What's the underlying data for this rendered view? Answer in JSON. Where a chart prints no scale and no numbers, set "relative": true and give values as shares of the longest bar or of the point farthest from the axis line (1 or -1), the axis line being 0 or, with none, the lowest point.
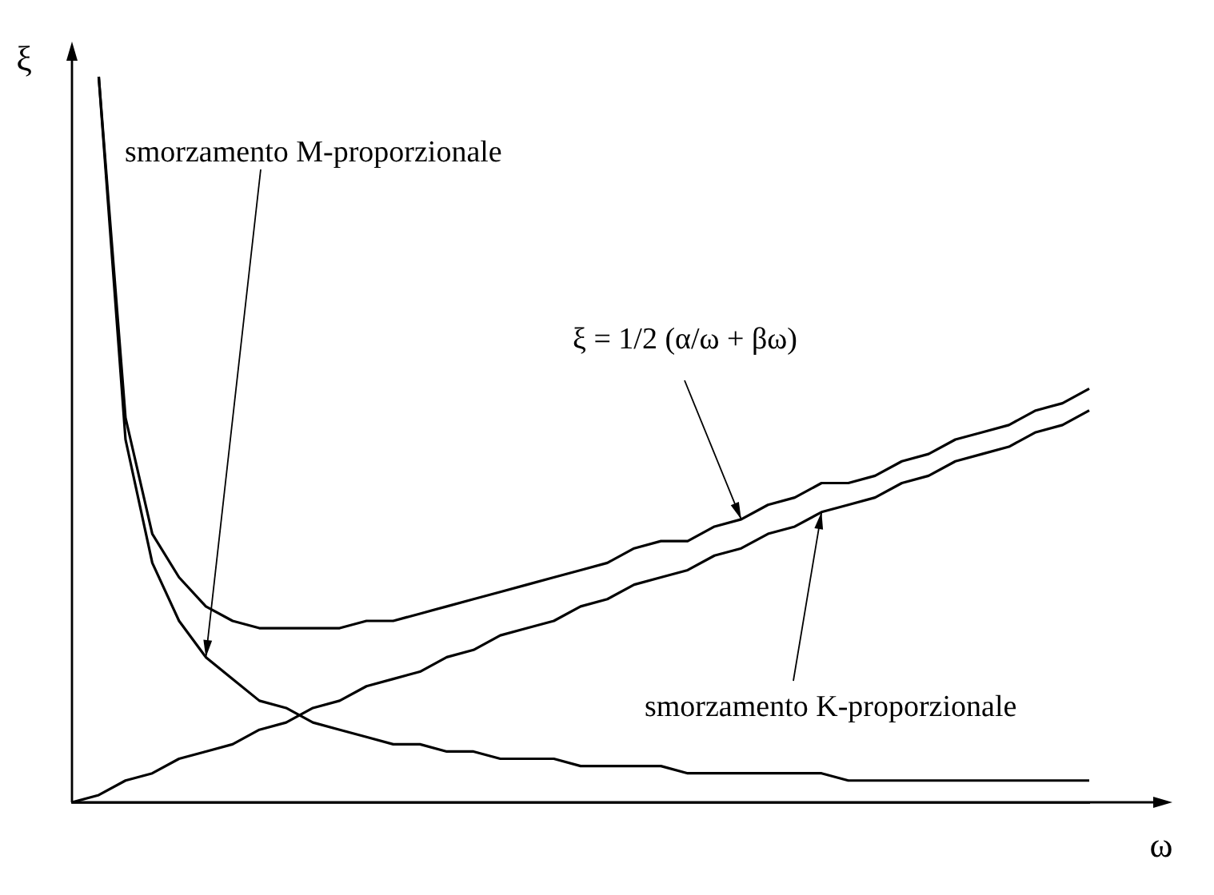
{
  "chart_data": {
    "type": "line",
    "relative": true,
    "xlabel": "ω",
    "ylabel": "ξ",
    "legend": false,
    "grid": false,
    "marker": "none",
    "line_style": "solid",
    "categories": [
      null,
      null,
      null,
      null,
      null,
      null,
      null,
      null,
      null,
      null,
      null,
      null,
      null,
      null,
      null,
      null,
      null,
      null,
      null,
      null,
      null,
      null,
      null,
      null,
      null,
      null,
      null,
      null,
      null,
      null,
      null,
      null,
      null,
      null,
      null,
      null,
      null,
      null,
      null
    ],
    "series": [
      {
        "color": "#000000",
        "values": [
          null,
          1,
          0.5,
          0.33,
          0.25,
          0.2,
          0.17,
          0.14,
          0.13,
          0.11,
          0.1,
          0.09,
          0.08,
          0.08,
          0.07,
          0.07,
          0.06,
          0.06,
          0.06,
          0.05,
          0.05,
          0.05,
          0.05,
          0.04,
          0.04,
          0.04,
          0.04,
          0.04,
          0.04,
          0.03,
          0.03,
          0.03,
          0.03,
          0.03,
          0.03,
          0.03,
          0.03,
          0.03,
          0.03
        ]
      },
      {
        "color": "#000000",
        "values": [
          0,
          0.01,
          0.03,
          0.04,
          0.06,
          0.07,
          0.08,
          0.1,
          0.11,
          0.13,
          0.14,
          0.16,
          0.17,
          0.18,
          0.2,
          0.21,
          0.23,
          0.24,
          0.25,
          0.27,
          0.28,
          0.3,
          0.31,
          0.32,
          0.34,
          0.35,
          0.37,
          0.38,
          0.4,
          0.41,
          0.42,
          0.44,
          0.45,
          0.47,
          0.48,
          0.49,
          0.51,
          0.52,
          0.54
        ]
      },
      {
        "color": "#000000",
        "values": [
          null,
          1,
          0.53,
          0.37,
          0.31,
          0.27,
          0.25,
          0.24,
          0.24,
          0.24,
          0.24,
          0.25,
          0.25,
          0.26,
          0.27,
          0.28,
          0.29,
          0.3,
          0.31,
          0.32,
          0.33,
          0.35,
          0.36,
          0.36,
          0.38,
          0.39,
          0.41,
          0.42,
          0.44,
          0.44,
          0.45,
          0.47,
          0.48,
          0.5,
          0.51,
          0.52,
          0.54,
          0.55,
          0.57
        ]
      }
    ],
    "annotations": [
      "smorzamento M-proporzionale",
      "ξ = 1/2 (α/ω + βω)",
      "smorzamento K-proporzionale"
    ]
  }
}
